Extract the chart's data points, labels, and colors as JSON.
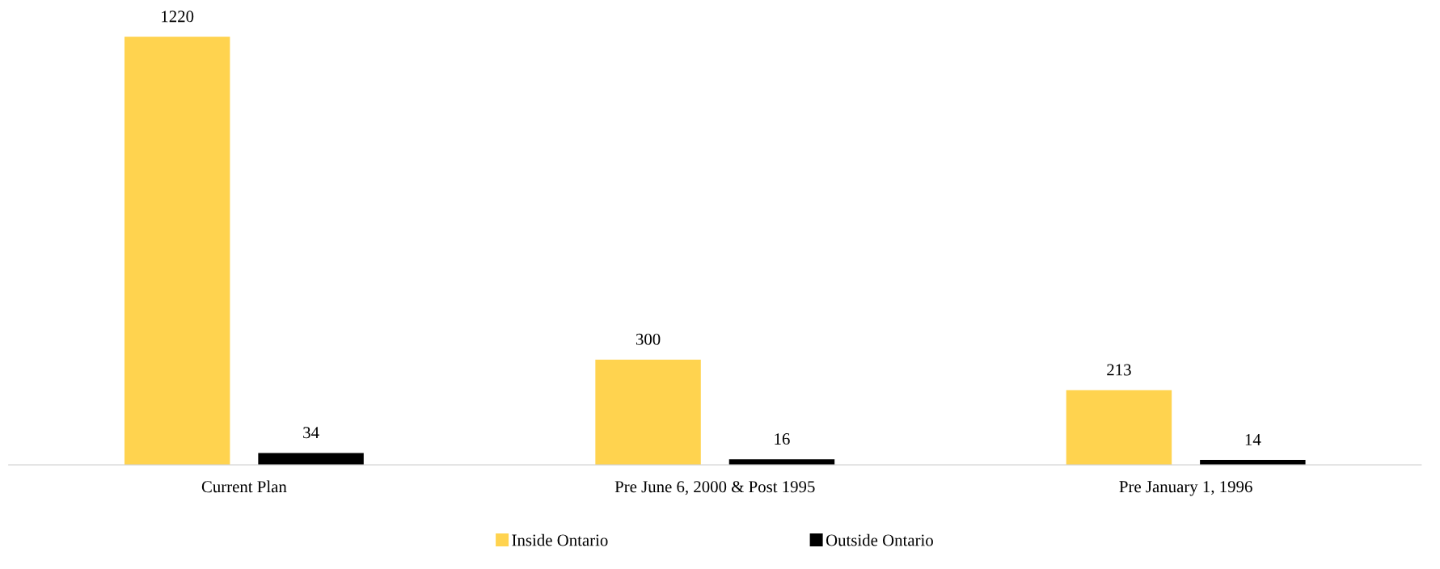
{
  "chart_data": {
    "type": "bar",
    "categories": [
      "Current Plan",
      "Pre June 6, 2000 & Post 1995",
      "Pre January 1, 1996"
    ],
    "series": [
      {
        "name": "Inside Ontario",
        "color": "#ffd34f",
        "values": [
          1220,
          300,
          213
        ]
      },
      {
        "name": "Outside Ontario",
        "color": "#000000",
        "values": [
          34,
          16,
          14
        ]
      }
    ],
    "data_labels": true,
    "legend": "bottom",
    "grid": false
  }
}
